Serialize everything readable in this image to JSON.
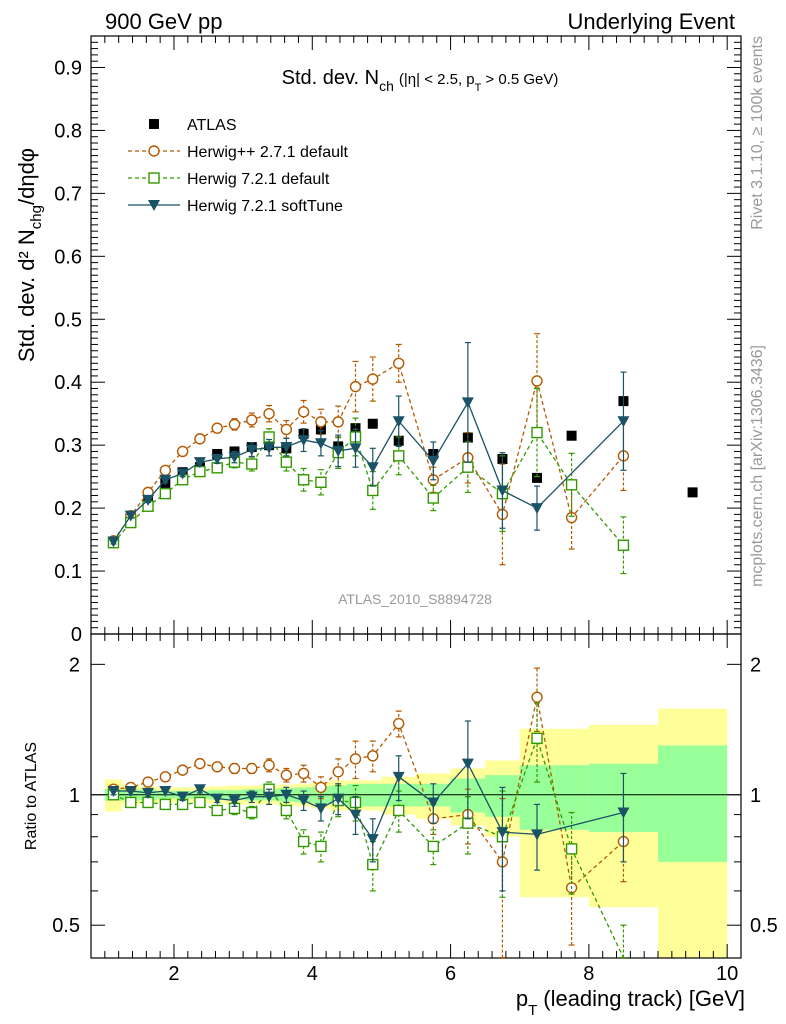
{
  "header": {
    "left": "900 GeV pp",
    "right": "Underlying Event",
    "rivet": "Rivet 3.1.10, ≥ 100k events",
    "mcplots": "mcplots.cern.ch [arXiv:1306.3436]"
  },
  "colors": {
    "data": "#000000",
    "herwigpp": "#b35900",
    "herwig721": "#339900",
    "softtune": "#1a5266",
    "band_stat": "#99ff99",
    "band_total": "#ffff99"
  },
  "chart_data": [
    {
      "type": "scatter",
      "panel": "main",
      "title": "Std. dev. N",
      "title_sub": "ch",
      "title_cut": "(|η| < 2.5, p",
      "title_cut_sub": "T",
      "title_cut_end": "> 0.5 GeV)",
      "analysis_label": "ATLAS_2010_S8894728",
      "ylabel": "Std. dev. d² N",
      "ylabel_sub": "chg",
      "ylabel_end": "/dηdφ",
      "xlim": [
        0.8,
        10.2
      ],
      "ylim": [
        0,
        0.95
      ],
      "yticks": [
        "0",
        "0.1",
        "0.2",
        "0.3",
        "0.4",
        "0.5",
        "0.6",
        "0.7",
        "0.8",
        "0.9"
      ],
      "legend_position": "top-left",
      "series": [
        {
          "name": "ATLAS",
          "marker": "square-filled",
          "x": [
            1.125,
            1.375,
            1.625,
            1.875,
            2.125,
            2.375,
            2.625,
            2.875,
            3.125,
            3.375,
            3.625,
            3.875,
            4.125,
            4.375,
            4.625,
            4.875,
            5.25,
            5.75,
            6.25,
            6.75,
            7.25,
            7.75,
            8.5,
            9.5
          ],
          "y": [
            0.145,
            0.185,
            0.21,
            0.24,
            0.257,
            0.265,
            0.286,
            0.29,
            0.297,
            0.3,
            0.295,
            0.318,
            0.325,
            0.298,
            0.327,
            0.334,
            0.307,
            0.286,
            0.312,
            0.278,
            0.248,
            0.315,
            0.37,
            0.225
          ]
        },
        {
          "name": "Herwig++ 2.7.1 default",
          "marker": "circle-open",
          "x": [
            1.125,
            1.375,
            1.625,
            1.875,
            2.125,
            2.375,
            2.625,
            2.875,
            3.125,
            3.375,
            3.625,
            3.875,
            4.125,
            4.375,
            4.625,
            4.875,
            5.25,
            5.75,
            6.25,
            6.75,
            7.25,
            7.75,
            8.5
          ],
          "y": [
            0.148,
            0.188,
            0.225,
            0.26,
            0.29,
            0.31,
            0.327,
            0.333,
            0.34,
            0.35,
            0.325,
            0.353,
            0.337,
            0.337,
            0.393,
            0.405,
            0.43,
            0.245,
            0.28,
            0.19,
            0.402,
            0.185,
            0.283
          ],
          "err": [
            0.004,
            0.004,
            0.004,
            0.005,
            0.005,
            0.006,
            0.007,
            0.009,
            0.011,
            0.013,
            0.014,
            0.018,
            0.02,
            0.025,
            0.04,
            0.035,
            0.03,
            0.02,
            0.04,
            0.08,
            0.075,
            0.05,
            0.055
          ]
        },
        {
          "name": "Herwig 7.2.1 default",
          "marker": "square-open",
          "x": [
            1.125,
            1.375,
            1.625,
            1.875,
            2.125,
            2.375,
            2.625,
            2.875,
            3.125,
            3.375,
            3.625,
            3.875,
            4.125,
            4.375,
            4.625,
            4.875,
            5.25,
            5.75,
            6.25,
            6.75,
            7.25,
            7.75,
            8.5
          ],
          "y": [
            0.145,
            0.177,
            0.203,
            0.223,
            0.245,
            0.258,
            0.264,
            0.273,
            0.27,
            0.313,
            0.273,
            0.245,
            0.241,
            0.288,
            0.313,
            0.228,
            0.283,
            0.216,
            0.265,
            0.223,
            0.32,
            0.237,
            0.141
          ],
          "err": [
            0.004,
            0.004,
            0.004,
            0.005,
            0.005,
            0.006,
            0.007,
            0.009,
            0.011,
            0.013,
            0.014,
            0.018,
            0.02,
            0.025,
            0.03,
            0.03,
            0.03,
            0.02,
            0.04,
            0.06,
            0.07,
            0.05,
            0.045
          ]
        },
        {
          "name": "Herwig 7.2.1 softTune",
          "marker": "triangle-down-filled",
          "x": [
            1.125,
            1.375,
            1.625,
            1.875,
            2.125,
            2.375,
            2.625,
            2.875,
            3.125,
            3.375,
            3.625,
            3.875,
            4.125,
            4.375,
            4.625,
            4.875,
            5.25,
            5.75,
            6.25,
            6.75,
            7.25,
            8.5
          ],
          "y": [
            0.147,
            0.188,
            0.213,
            0.245,
            0.255,
            0.273,
            0.278,
            0.281,
            0.293,
            0.296,
            0.297,
            0.308,
            0.303,
            0.291,
            0.295,
            0.265,
            0.338,
            0.275,
            0.368,
            0.228,
            0.2,
            0.338
          ],
          "err": [
            0.004,
            0.004,
            0.004,
            0.005,
            0.005,
            0.006,
            0.007,
            0.009,
            0.011,
            0.013,
            0.014,
            0.018,
            0.02,
            0.025,
            0.03,
            0.03,
            0.04,
            0.03,
            0.095,
            0.06,
            0.035,
            0.078
          ]
        }
      ]
    },
    {
      "type": "scatter",
      "panel": "ratio",
      "ylabel": "Ratio to ATLAS",
      "xlabel": "p",
      "xlabel_sub": "T",
      "xlabel_end": "(leading track) [GeV]",
      "xlim": [
        0.8,
        10.2
      ],
      "ylim": [
        0.42,
        2.35
      ],
      "xticks": [
        "2",
        "4",
        "6",
        "8",
        "10"
      ],
      "yticks": [
        "0.5",
        "1",
        "2"
      ],
      "bands": {
        "edges": [
          1.0,
          1.25,
          1.5,
          1.75,
          2.0,
          2.25,
          2.5,
          2.75,
          3.0,
          3.25,
          3.5,
          3.75,
          4.0,
          4.25,
          4.5,
          4.75,
          5.0,
          5.5,
          6.0,
          6.5,
          7.0,
          7.5,
          8.0,
          9.0,
          10.0
        ],
        "stat": [
          0.03,
          0.03,
          0.03,
          0.02,
          0.02,
          0.02,
          0.025,
          0.025,
          0.03,
          0.03,
          0.035,
          0.04,
          0.045,
          0.05,
          0.06,
          0.06,
          0.06,
          0.06,
          0.09,
          0.11,
          0.17,
          0.17,
          0.18,
          0.3
        ],
        "total": [
          0.085,
          0.055,
          0.045,
          0.04,
          0.04,
          0.04,
          0.045,
          0.05,
          0.05,
          0.05,
          0.055,
          0.06,
          0.07,
          0.08,
          0.08,
          0.08,
          0.1,
          0.12,
          0.15,
          0.2,
          0.42,
          0.42,
          0.45,
          0.58
        ]
      },
      "series": [
        {
          "name": "Herwig++ 2.7.1 default",
          "x": [
            1.125,
            1.375,
            1.625,
            1.875,
            2.125,
            2.375,
            2.625,
            2.875,
            3.125,
            3.375,
            3.625,
            3.875,
            4.125,
            4.375,
            4.625,
            4.875,
            5.25,
            5.75,
            6.25,
            6.75,
            7.25,
            7.75,
            8.5
          ],
          "y": [
            1.03,
            1.04,
            1.07,
            1.1,
            1.14,
            1.18,
            1.16,
            1.15,
            1.15,
            1.17,
            1.11,
            1.12,
            1.04,
            1.13,
            1.21,
            1.23,
            1.46,
            0.88,
            0.9,
            0.7,
            1.68,
            0.61,
            0.78
          ],
          "err": [
            0.02,
            0.02,
            0.02,
            0.02,
            0.02,
            0.02,
            0.02,
            0.03,
            0.03,
            0.04,
            0.04,
            0.05,
            0.06,
            0.08,
            0.12,
            0.1,
            0.1,
            0.07,
            0.13,
            0.28,
            0.28,
            0.16,
            0.15
          ]
        },
        {
          "name": "Herwig 7.2.1 default",
          "x": [
            1.125,
            1.375,
            1.625,
            1.875,
            2.125,
            2.375,
            2.625,
            2.875,
            3.125,
            3.375,
            3.625,
            3.875,
            4.125,
            4.375,
            4.625,
            4.875,
            5.25,
            5.75,
            6.25,
            6.75,
            7.25,
            7.75,
            8.5
          ],
          "y": [
            1.0,
            0.96,
            0.96,
            0.95,
            0.95,
            0.96,
            0.92,
            0.93,
            0.91,
            1.03,
            0.92,
            0.78,
            0.76,
            0.97,
            0.96,
            0.69,
            0.92,
            0.76,
            0.86,
            0.8,
            1.35,
            0.75,
            0.38
          ],
          "err": [
            0.02,
            0.02,
            0.02,
            0.02,
            0.02,
            0.02,
            0.02,
            0.03,
            0.03,
            0.04,
            0.04,
            0.05,
            0.06,
            0.08,
            0.09,
            0.09,
            0.1,
            0.07,
            0.13,
            0.22,
            0.28,
            0.16,
            0.12
          ]
        },
        {
          "name": "Herwig 7.2.1 softTune",
          "x": [
            1.125,
            1.375,
            1.625,
            1.875,
            2.125,
            2.375,
            2.625,
            2.875,
            3.125,
            3.375,
            3.625,
            3.875,
            4.125,
            4.375,
            4.625,
            4.875,
            5.25,
            5.75,
            6.25,
            6.75,
            7.25,
            8.5
          ],
          "y": [
            1.02,
            1.02,
            1.01,
            1.02,
            0.99,
            1.03,
            0.98,
            0.97,
            0.99,
            0.99,
            1.0,
            0.97,
            0.93,
            0.98,
            0.9,
            0.79,
            1.1,
            0.96,
            1.18,
            0.82,
            0.81,
            0.91
          ],
          "err": [
            0.02,
            0.02,
            0.02,
            0.02,
            0.02,
            0.02,
            0.02,
            0.03,
            0.03,
            0.04,
            0.04,
            0.05,
            0.06,
            0.08,
            0.09,
            0.09,
            0.13,
            0.1,
            0.3,
            0.22,
            0.14,
            0.21
          ]
        }
      ]
    }
  ]
}
